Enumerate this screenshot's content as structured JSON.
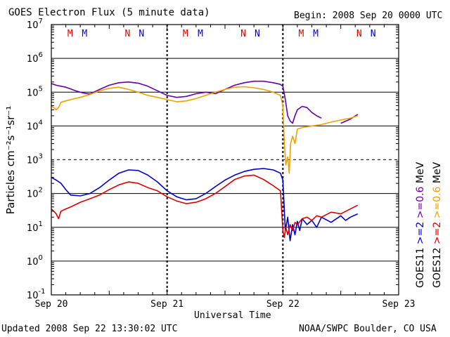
{
  "chart_data": {
    "type": "line",
    "title": "GOES Electron Flux (5 minute data)",
    "begin_label": "Begin: 2008 Sep 20 0000 UTC",
    "xlabel": "Universal Time",
    "ylabel": "Particles cm⁻²s⁻¹sr⁻¹",
    "y_scale": "log",
    "ylim_exp": [
      -1,
      7
    ],
    "y_tick_base": "10",
    "y_tick_exponents": [
      "7",
      "6",
      "5",
      "4",
      "3",
      "2",
      "1",
      "0",
      "-1"
    ],
    "y_threshold_line": 1000,
    "x_tick_labels": [
      "Sep 20",
      "Sep 21",
      "Sep 22",
      "Sep 23"
    ],
    "xlim_hours": [
      0,
      72
    ],
    "right_labels": [
      {
        "text": "GOES11",
        "color": "#000000"
      },
      {
        "text": ">=2",
        "color": "#0000cc"
      },
      {
        "text": ">=0.6",
        "color": "#6600aa"
      },
      {
        "text": "MeV",
        "color": "#000000"
      },
      {
        "text": "GOES12",
        "color": "#000000"
      },
      {
        "text": ">=2",
        "color": "#dd0000"
      },
      {
        "text": ">=0.6",
        "color": "#f0a000"
      },
      {
        "text": "MeV",
        "color": "#000000"
      }
    ],
    "markers": [
      {
        "label": "M",
        "hour": 3.9,
        "color": "#dd0000"
      },
      {
        "label": "M",
        "hour": 6.9,
        "color": "#0000cc"
      },
      {
        "label": "N",
        "hour": 15.8,
        "color": "#dd0000"
      },
      {
        "label": "N",
        "hour": 18.7,
        "color": "#0000cc"
      },
      {
        "label": "M",
        "hour": 27.8,
        "color": "#dd0000"
      },
      {
        "label": "M",
        "hour": 30.9,
        "color": "#0000cc"
      },
      {
        "label": "N",
        "hour": 39.8,
        "color": "#dd0000"
      },
      {
        "label": "N",
        "hour": 42.7,
        "color": "#0000cc"
      },
      {
        "label": "M",
        "hour": 51.8,
        "color": "#dd0000"
      },
      {
        "label": "M",
        "hour": 54.8,
        "color": "#0000cc"
      },
      {
        "label": "N",
        "hour": 63.8,
        "color": "#dd0000"
      },
      {
        "label": "N",
        "hour": 66.7,
        "color": "#0000cc"
      }
    ],
    "series": [
      {
        "name": "GOES11 >=0.6 MeV",
        "color": "#6600aa",
        "x": [
          0,
          1,
          2,
          3,
          4,
          5,
          6,
          7,
          8,
          10,
          12,
          14,
          16,
          18,
          20,
          22,
          24,
          26,
          28,
          30,
          32,
          34,
          36,
          38,
          40,
          42,
          44,
          46,
          47.5,
          48,
          48.5,
          49,
          49.5,
          50,
          50.5,
          51,
          52,
          53,
          54,
          55,
          56,
          58,
          60,
          62,
          63.5
        ],
        "y": [
          180000,
          160000,
          150000,
          140000,
          125000,
          110000,
          100000,
          92000,
          88000,
          120000,
          160000,
          190000,
          200000,
          185000,
          150000,
          110000,
          80000,
          70000,
          75000,
          90000,
          100000,
          90000,
          120000,
          160000,
          190000,
          210000,
          210000,
          190000,
          170000,
          150000,
          60000,
          20000,
          14000,
          12000,
          20000,
          30000,
          38000,
          35000,
          25000,
          20000,
          17000,
          null,
          12000,
          16000,
          22000
        ]
      },
      {
        "name": "GOES12 >=0.6 MeV",
        "color": "#f0a000",
        "x": [
          0,
          1,
          1.5,
          2,
          3,
          4,
          6,
          8,
          10,
          12,
          14,
          16,
          18,
          20,
          22,
          24,
          26,
          28,
          30,
          32,
          34,
          36,
          38,
          40,
          42,
          44,
          46,
          47.5,
          48,
          48.3,
          48.6,
          49,
          49.3,
          49.6,
          50,
          50.5,
          51,
          52,
          54,
          56,
          58,
          60,
          62,
          63.5
        ],
        "y": [
          40000,
          30000,
          35000,
          50000,
          55000,
          60000,
          70000,
          85000,
          110000,
          130000,
          140000,
          120000,
          100000,
          80000,
          70000,
          60000,
          52000,
          55000,
          65000,
          80000,
          100000,
          120000,
          140000,
          145000,
          135000,
          120000,
          100000,
          80000,
          40000,
          3000,
          700,
          1200,
          400,
          3000,
          5000,
          3000,
          8000,
          9000,
          10000,
          11000,
          13000,
          15000,
          17000,
          20000
        ]
      },
      {
        "name": "GOES11 >=2 MeV",
        "color": "#0000cc",
        "x": [
          0,
          1,
          2,
          3,
          4,
          6,
          8,
          10,
          12,
          14,
          16,
          18,
          20,
          22,
          24,
          26,
          28,
          30,
          32,
          34,
          36,
          38,
          40,
          42,
          44,
          46,
          47.5,
          48,
          48.5,
          49,
          49.5,
          50,
          50.5,
          51,
          51.5,
          52,
          53,
          54,
          55,
          56,
          58,
          60,
          61,
          62,
          63.5
        ],
        "y": [
          300,
          250,
          200,
          130,
          90,
          85,
          100,
          150,
          250,
          400,
          500,
          480,
          350,
          220,
          120,
          80,
          65,
          70,
          100,
          160,
          250,
          350,
          450,
          520,
          550,
          500,
          400,
          250,
          8,
          20,
          4,
          12,
          6,
          15,
          8,
          18,
          12,
          16,
          10,
          20,
          14,
          22,
          16,
          20,
          25
        ]
      },
      {
        "name": "GOES12 >=2 MeV",
        "color": "#dd0000",
        "x": [
          0,
          0.5,
          1,
          1.5,
          2,
          3,
          4,
          6,
          8,
          10,
          12,
          14,
          16,
          18,
          20,
          22,
          24,
          26,
          28,
          30,
          32,
          34,
          36,
          38,
          40,
          42,
          44,
          46,
          47.5,
          48,
          48.3,
          48.6,
          49,
          49.5,
          50,
          50.5,
          51,
          52,
          53,
          54,
          55,
          56,
          58,
          60,
          62,
          63.5
        ],
        "y": [
          35,
          30,
          25,
          18,
          30,
          35,
          40,
          55,
          70,
          90,
          130,
          180,
          220,
          200,
          150,
          120,
          80,
          60,
          50,
          55,
          70,
          100,
          160,
          260,
          330,
          350,
          260,
          170,
          120,
          8,
          5,
          10,
          6,
          12,
          8,
          14,
          12,
          18,
          20,
          16,
          22,
          20,
          28,
          25,
          35,
          45
        ]
      }
    ]
  },
  "footer": {
    "updated": "Updated 2008 Sep 22 13:30:02 UTC",
    "credit": "NOAA/SWPC Boulder, CO USA"
  }
}
